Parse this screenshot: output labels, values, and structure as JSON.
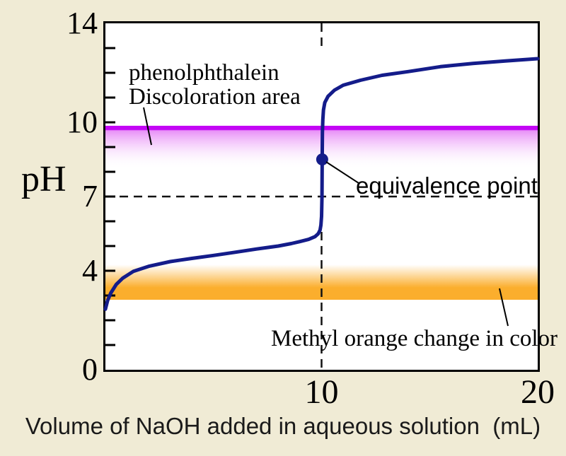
{
  "colors": {
    "background": "#f0ebd5",
    "plot_background": "#ffffff",
    "axis": "#000000",
    "curve": "#141c8a",
    "phenolphthalein_band": "#c305f5",
    "phenolphthalein_band_mid": "#e890f7",
    "methyl_orange_band": "#fbae2d",
    "dashed_line": "#111111",
    "text": "#000000"
  },
  "chart_data": {
    "type": "line",
    "title": "",
    "xlabel": "Volume of NaOH added in aqueous solution  (mL)",
    "ylabel": "pH",
    "xlim": [
      0,
      20
    ],
    "ylim": [
      0,
      14
    ],
    "x_ticks_labeled": [
      10,
      20
    ],
    "y_ticks_labeled": [
      0,
      4,
      7,
      10,
      14
    ],
    "y_minor_tick_step": 1,
    "grid": false,
    "series": [
      {
        "name": "acid-base titration curve",
        "color": "#141c8a",
        "points": [
          [
            0,
            2.45
          ],
          [
            0.1,
            2.8
          ],
          [
            0.25,
            3.1
          ],
          [
            0.5,
            3.45
          ],
          [
            0.8,
            3.7
          ],
          [
            1.3,
            3.98
          ],
          [
            2,
            4.18
          ],
          [
            3,
            4.37
          ],
          [
            4,
            4.5
          ],
          [
            5,
            4.62
          ],
          [
            6,
            4.75
          ],
          [
            7,
            4.88
          ],
          [
            8,
            5.0
          ],
          [
            8.6,
            5.1
          ],
          [
            9.0,
            5.18
          ],
          [
            9.4,
            5.27
          ],
          [
            9.7,
            5.38
          ],
          [
            9.85,
            5.5
          ],
          [
            9.93,
            5.65
          ],
          [
            9.97,
            5.85
          ],
          [
            10.0,
            6.2
          ],
          [
            10.02,
            7.0
          ],
          [
            10.03,
            8.5
          ],
          [
            10.04,
            9.6
          ],
          [
            10.06,
            10.1
          ],
          [
            10.09,
            10.5
          ],
          [
            10.15,
            10.8
          ],
          [
            10.3,
            11.05
          ],
          [
            10.6,
            11.3
          ],
          [
            11.0,
            11.5
          ],
          [
            11.8,
            11.7
          ],
          [
            12.8,
            11.9
          ],
          [
            14,
            12.05
          ],
          [
            15.5,
            12.25
          ],
          [
            17,
            12.38
          ],
          [
            18.5,
            12.48
          ],
          [
            20,
            12.57
          ]
        ]
      }
    ],
    "equivalence_point": {
      "x": 10,
      "ph": 8.5
    },
    "reference_lines": [
      {
        "orientation": "horizontal",
        "ph": 7,
        "style": "dashed"
      },
      {
        "orientation": "vertical",
        "x": 10,
        "style": "dashed"
      }
    ],
    "indicator_bands": [
      {
        "name": "phenolphthalein discoloration area",
        "color": "#c305f5",
        "mid_color": "#e890f7",
        "ph_top": 9.86,
        "ph_solid_until": 9.7,
        "ph_fade_to": 8.1,
        "fade": "down"
      },
      {
        "name": "methyl orange change in color",
        "color": "#fbae2d",
        "ph_bottom": 2.83,
        "ph_solid_until": 3.32,
        "ph_fade_to": 4.25,
        "fade": "up"
      }
    ],
    "annotations": [
      {
        "id": "phenolphthalein",
        "lines": [
          "phenolphthalein",
          "Discoloration area"
        ],
        "points_to": "phenolphthalein band"
      },
      {
        "id": "equivalence",
        "lines": [
          "equivalence point"
        ],
        "points_to": "equivalence point marker"
      },
      {
        "id": "methyl-orange",
        "lines": [
          "Methyl orange change in color"
        ],
        "points_to": "methyl orange band"
      }
    ]
  }
}
